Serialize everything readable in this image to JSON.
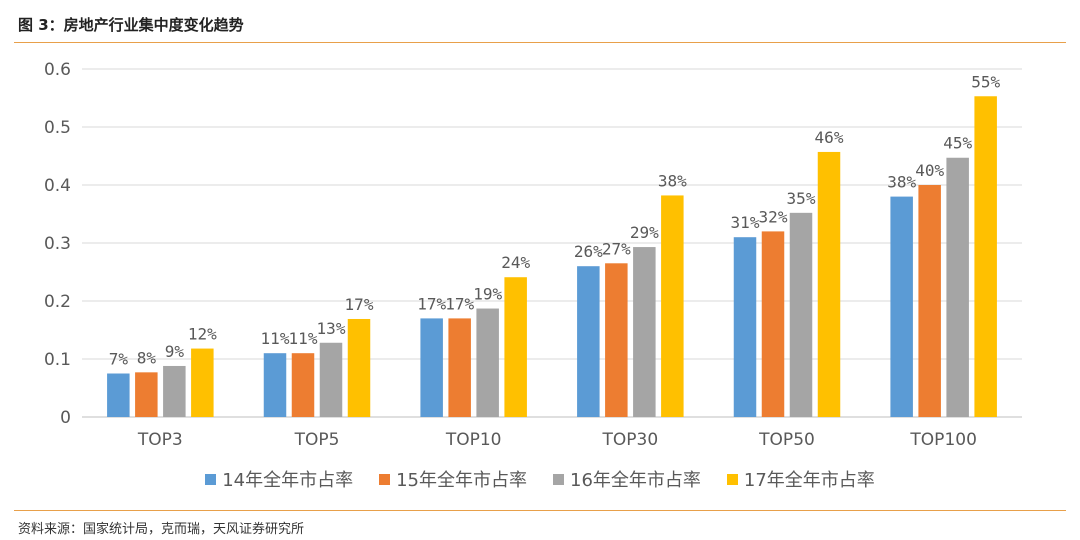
{
  "title": "图 3：房地产行业集中度变化趋势",
  "source": "资料来源：国家统计局，克而瑞，天风证券研究所",
  "chart_data": {
    "type": "bar",
    "categories": [
      "TOP3",
      "TOP5",
      "TOP10",
      "TOP30",
      "TOP50",
      "TOP100"
    ],
    "series": [
      {
        "name": "14年全年市占率",
        "color": "#5b9bd5",
        "values": [
          0.075,
          0.11,
          0.17,
          0.26,
          0.31,
          0.38
        ],
        "labels": [
          "7%",
          "11%",
          "17%",
          "26%",
          "31%",
          "38%"
        ]
      },
      {
        "name": "15年全年市占率",
        "color": "#ed7d31",
        "values": [
          0.077,
          0.11,
          0.17,
          0.265,
          0.32,
          0.4
        ],
        "labels": [
          "8%",
          "11%",
          "17%",
          "27%",
          "32%",
          "40%"
        ]
      },
      {
        "name": "16年全年市占率",
        "color": "#a5a5a5",
        "values": [
          0.088,
          0.128,
          0.187,
          0.293,
          0.352,
          0.447
        ],
        "labels": [
          "9%",
          "13%",
          "19%",
          "29%",
          "35%",
          "45%"
        ]
      },
      {
        "name": "17年全年市占率",
        "color": "#ffc000",
        "values": [
          0.118,
          0.169,
          0.241,
          0.382,
          0.457,
          0.553
        ],
        "labels": [
          "12%",
          "17%",
          "24%",
          "38%",
          "46%",
          "55%"
        ]
      }
    ],
    "yticks": [
      "0",
      "0.1",
      "0.2",
      "0.3",
      "0.4",
      "0.5",
      "0.6"
    ],
    "ylim": [
      0,
      0.6
    ],
    "grid": true,
    "legend_position": "bottom"
  }
}
